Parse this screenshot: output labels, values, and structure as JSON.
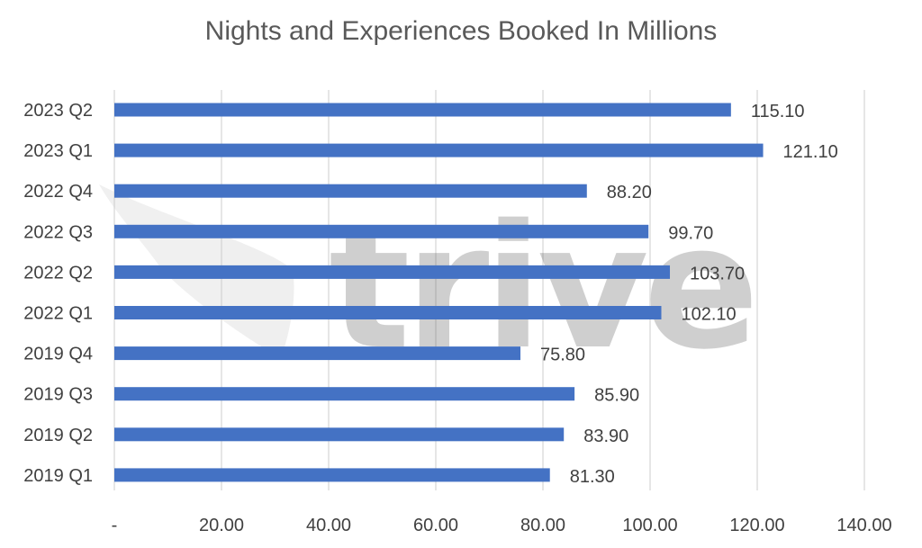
{
  "chart_data": {
    "type": "bar",
    "orientation": "horizontal",
    "title": "Nights and Experiences Booked In Millions",
    "xlabel": "",
    "ylabel": "",
    "categories": [
      "2023 Q2",
      "2023 Q1",
      "2022 Q4",
      "2022 Q3",
      "2022 Q2",
      "2022 Q1",
      "2019 Q4",
      "2019 Q3",
      "2019 Q2",
      "2019 Q1"
    ],
    "values": [
      115.1,
      121.1,
      88.2,
      99.7,
      103.7,
      102.1,
      75.8,
      85.9,
      83.9,
      81.3
    ],
    "value_labels": [
      "115.10",
      "121.10",
      "88.20",
      "99.70",
      "103.70",
      "102.10",
      "75.80",
      "85.90",
      "83.90",
      "81.30"
    ],
    "xlim": [
      0,
      140
    ],
    "x_ticks": [
      0,
      20,
      40,
      60,
      80,
      100,
      120,
      140
    ],
    "x_tick_labels": [
      "-",
      "20.00",
      "40.00",
      "60.00",
      "80.00",
      "100.00",
      "120.00",
      "140.00"
    ],
    "grid": "vertical",
    "legend": "none",
    "bar_color": "#4472C4",
    "grid_color": "#D9D9D9",
    "text_color": "#404040"
  },
  "watermark": {
    "text": "trive",
    "icon": "wing-logo-icon"
  }
}
